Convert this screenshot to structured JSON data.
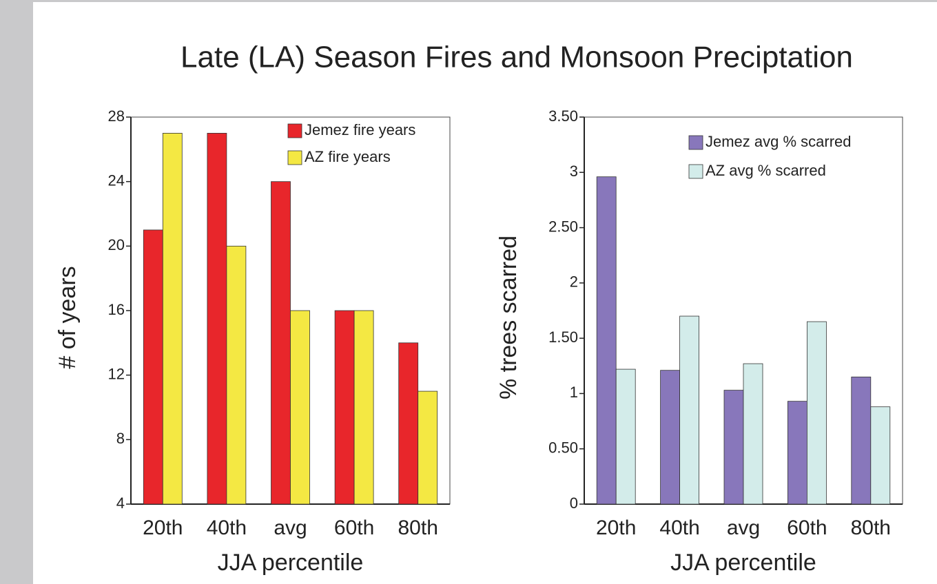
{
  "title": "Late (LA) Season Fires and Monsoon Preciptation",
  "chart_data": [
    {
      "type": "bar",
      "x_label": "JJA percentile",
      "y_label": "# of years",
      "categories": [
        "20th",
        "40th",
        "avg",
        "60th",
        "80th"
      ],
      "series": [
        {
          "name": "Jemez fire years",
          "color": "#e8262b",
          "values": [
            21,
            27,
            24,
            16,
            14
          ]
        },
        {
          "name": "AZ fire years",
          "color": "#f4e843",
          "values": [
            27,
            20,
            16,
            16,
            11
          ]
        }
      ],
      "ylim": [
        4,
        28
      ],
      "yticks": [
        4,
        8,
        12,
        16,
        20,
        24,
        28
      ],
      "legend": "top-right"
    },
    {
      "type": "bar",
      "x_label": "JJA percentile",
      "y_label": "% trees scarred",
      "categories": [
        "20th",
        "40th",
        "avg",
        "60th",
        "80th"
      ],
      "series": [
        {
          "name": "Jemez avg % scarred",
          "color": "#8877bb",
          "values": [
            2.96,
            1.21,
            1.03,
            0.93,
            1.15
          ]
        },
        {
          "name": "AZ avg % scarred",
          "color": "#d3ecea",
          "values": [
            1.22,
            1.7,
            1.27,
            1.65,
            0.88
          ]
        }
      ],
      "ylim": [
        0,
        3.5
      ],
      "yticks": [
        0,
        {
          "value": 0.5,
          "label": "0.50"
        },
        1,
        {
          "value": 1.5,
          "label": "1.50"
        },
        2,
        {
          "value": 2.5,
          "label": "2.50"
        },
        3,
        {
          "value": 3.5,
          "label": "3.50"
        }
      ],
      "legend": "top-right"
    }
  ]
}
